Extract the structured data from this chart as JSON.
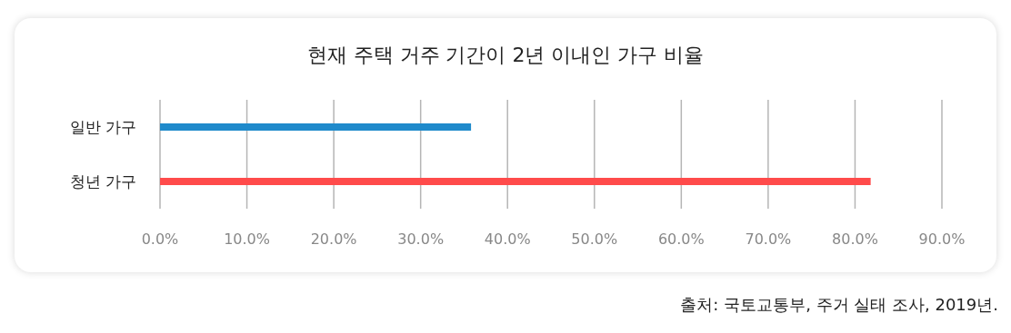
{
  "chart_data": {
    "type": "bar",
    "orientation": "horizontal",
    "title": "현재 주택 거주 기간이 2년 이내인 가구 비율",
    "categories": [
      "일반 가구",
      "청년 가구"
    ],
    "values": [
      35.8,
      81.8
    ],
    "colors": [
      "#1f8acb",
      "#ff4b4b"
    ],
    "xlim": [
      0,
      90
    ],
    "xticks": [
      {
        "value": 0,
        "label": "0.0%"
      },
      {
        "value": 10,
        "label": "10.0%"
      },
      {
        "value": 20,
        "label": "20.0%"
      },
      {
        "value": 30,
        "label": "30.0%"
      },
      {
        "value": 40,
        "label": "40.0%"
      },
      {
        "value": 50,
        "label": "50.0%"
      },
      {
        "value": 60,
        "label": "60.0%"
      },
      {
        "value": 70,
        "label": "70.0%"
      },
      {
        "value": 80,
        "label": "80.0%"
      },
      {
        "value": 90,
        "label": "90.0%"
      }
    ],
    "grid": "x",
    "annotations": [
      "출처: 국토교통부, 주거 실태 조사, 2019년."
    ]
  }
}
